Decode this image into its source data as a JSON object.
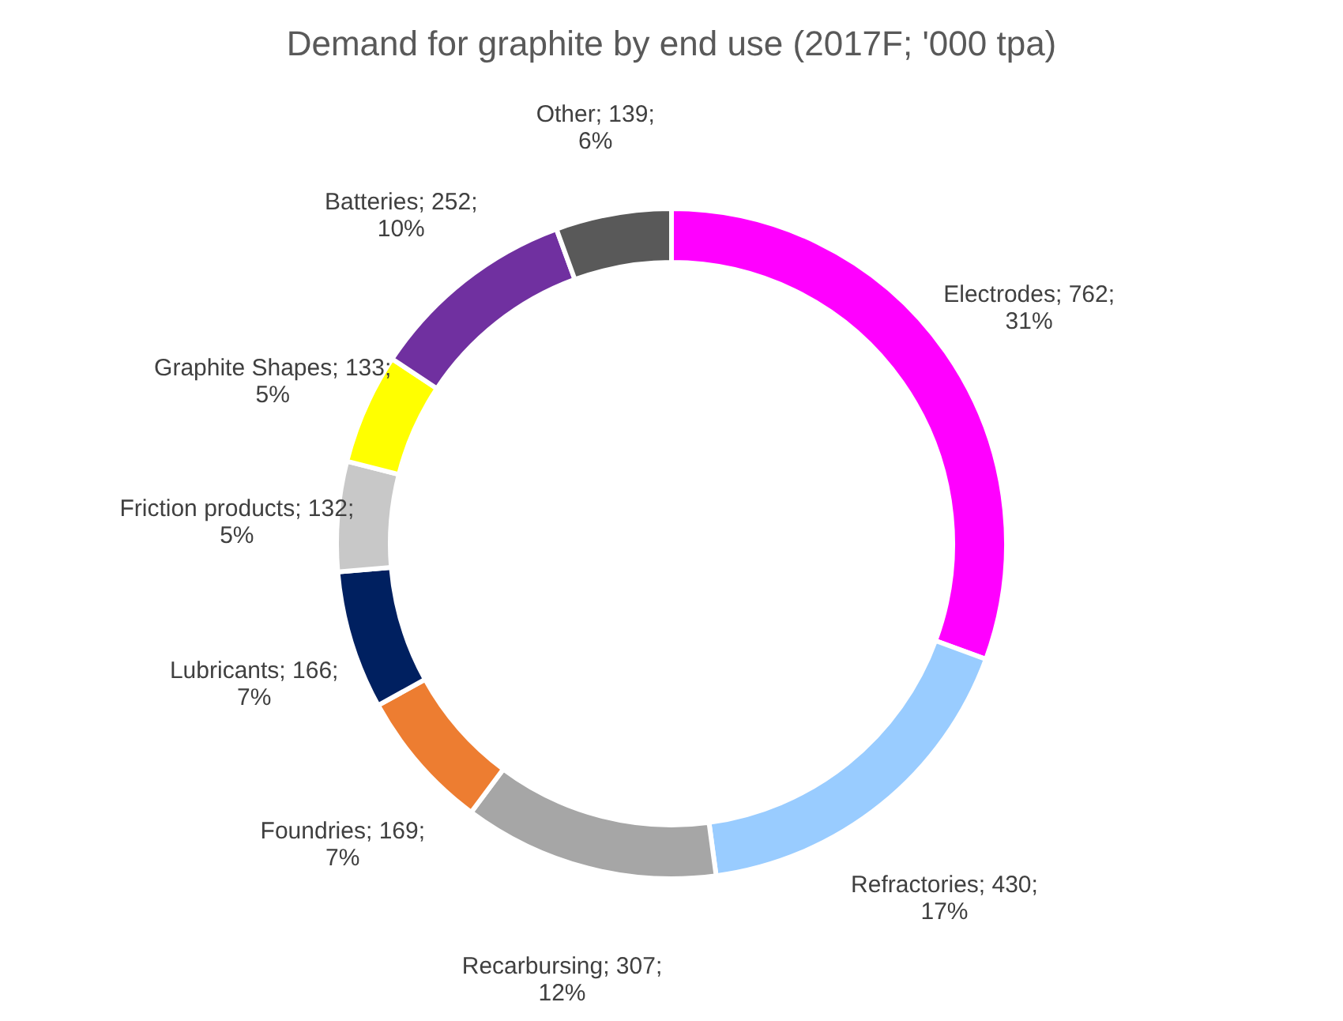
{
  "chart_data": {
    "type": "donut",
    "title": "Demand for graphite by end use (2017F; '000 tpa)",
    "categories": [
      "Electrodes",
      "Refractories",
      "Recarbursing",
      "Foundries",
      "Lubricants",
      "Friction products",
      "Graphite Shapes",
      "Batteries",
      "Other"
    ],
    "values": [
      762,
      430,
      307,
      169,
      166,
      132,
      133,
      252,
      139
    ],
    "colors": [
      "#ff00ff",
      "#99ccff",
      "#a6a6a6",
      "#ed7d31",
      "#002060",
      "#c8c8c8",
      "#ffff00",
      "#7030a0",
      "#595959"
    ],
    "value_labels": [
      "762; 31%",
      "430; 17%",
      "307; 12%",
      "169; 7%",
      "166; 7%",
      "132; 5%",
      "133; 5%",
      "252; 10%",
      "139; 6%"
    ]
  }
}
